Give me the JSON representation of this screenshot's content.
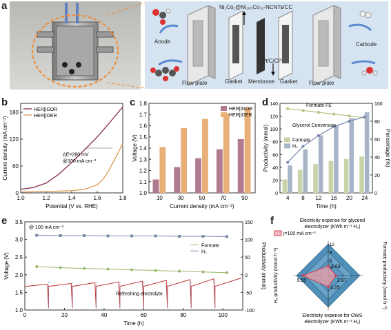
{
  "panel_labels": {
    "a": "a",
    "b": "b",
    "c": "c",
    "d": "d",
    "e": "e",
    "f": "f"
  },
  "panel_a": {
    "catalyst_label": "Ni₁Co₁@Ni₁₀₀Co₃₁-NCNTs/CC",
    "anode_label": "Anode",
    "cathode_label": "Cathode",
    "pt_label": "Pt/C/CP",
    "parts": [
      "Flow plate",
      "Gasket",
      "Membrane",
      "Gasket",
      "Flow plate"
    ]
  },
  "chart_data": [
    {
      "id": "b",
      "type": "line",
      "xlabel": "Potential (V vs. RHE)",
      "ylabel": "Current density (mA cm⁻²)",
      "xlim": [
        1.0,
        1.8
      ],
      "ylim": [
        0,
        200
      ],
      "xticks": [
        "1.0",
        "1.2",
        "1.4",
        "1.6",
        "1.8"
      ],
      "yticks": [
        "0",
        "60",
        "120",
        "180"
      ],
      "legend": [
        "HER||GOR",
        "HER||OER"
      ],
      "annotation": [
        "ΔE=280 mV",
        "@100 mA cm⁻²"
      ],
      "series": [
        {
          "name": "HER||GOR",
          "color": "#8b3a5a",
          "x": [
            1.0,
            1.1,
            1.2,
            1.3,
            1.4,
            1.5,
            1.6,
            1.7,
            1.8
          ],
          "y": [
            8,
            12,
            22,
            42,
            68,
            96,
            125,
            158,
            192
          ]
        },
        {
          "name": "HER||OER",
          "color": "#e0a060",
          "x": [
            1.0,
            1.2,
            1.4,
            1.5,
            1.6,
            1.65,
            1.7,
            1.75,
            1.8
          ],
          "y": [
            2,
            3,
            5,
            8,
            18,
            32,
            55,
            82,
            110
          ]
        }
      ]
    },
    {
      "id": "c",
      "type": "bar",
      "xlabel": "Current density (mA cm⁻²)",
      "ylabel": "Voltage (V)",
      "ylim": [
        1.0,
        1.8
      ],
      "yticks": [
        "1.0",
        "1.1",
        "1.2",
        "1.3",
        "1.4",
        "1.5",
        "1.6",
        "1.7",
        "1.8"
      ],
      "categories": [
        "10",
        "30",
        "50",
        "70",
        "90"
      ],
      "series": [
        {
          "name": "HER||GOR",
          "color": "#b07a90",
          "values": [
            1.12,
            1.23,
            1.31,
            1.39,
            1.48
          ]
        },
        {
          "name": "HER||OER",
          "color": "#e8b078",
          "values": [
            1.41,
            1.58,
            1.66,
            1.71,
            1.76
          ]
        }
      ]
    },
    {
      "id": "d",
      "type": "bar",
      "xlabel": "Time (h)",
      "ylabel": "Productivity (mmol)",
      "ylabel_right": "Percentage (%)",
      "ylim": [
        0,
        140
      ],
      "ylim_right": [
        0,
        100
      ],
      "yticks": [
        "0",
        "20",
        "40",
        "60",
        "80",
        "100",
        "120",
        "140"
      ],
      "yticks_right": [
        "0",
        "20",
        "40",
        "60",
        "80",
        "100"
      ],
      "categories": [
        "4",
        "8",
        "12",
        "16",
        "20",
        "24"
      ],
      "labels": {
        "fe": "Formate FE",
        "conversion": "Glycerol Conversion"
      },
      "series": [
        {
          "name": "Formate",
          "color": "#c8d4a8",
          "values": [
            21,
            36,
            45,
            50,
            53,
            57
          ]
        },
        {
          "name": "H₂",
          "color": "#a8b4c8",
          "values": [
            43,
            68,
            90,
            105,
            117,
            126
          ]
        }
      ],
      "lines": [
        {
          "name": "Formate FE",
          "color": "#b8c080",
          "values": [
            94,
            92,
            90,
            88,
            86,
            84
          ]
        },
        {
          "name": "Glycerol Conversion",
          "color": "#7888b0",
          "values": [
            34,
            52,
            64,
            74,
            80,
            85
          ]
        }
      ]
    },
    {
      "id": "e",
      "type": "line",
      "xlabel": "Time (h)",
      "ylabel": "Voltage (V)",
      "ylabel_right": "Productivity (mmol)",
      "xlim": [
        0,
        110
      ],
      "ylim": [
        1.0,
        3.5
      ],
      "ylim_right": [
        -100,
        150
      ],
      "xticks": [
        "0",
        "20",
        "40",
        "60",
        "80",
        "100"
      ],
      "yticks": [
        "1.0",
        "1.5",
        "2.0",
        "2.5",
        "3.0",
        "3.5"
      ],
      "yticks_right": [
        "-100",
        "-50",
        "0",
        "50",
        "100",
        "150"
      ],
      "labels": {
        "top": "@ 100 mA cm⁻²",
        "refresh": "Refreshing electrolyte"
      },
      "series": [
        {
          "name": "Formate",
          "color": "#9ab868",
          "x": [
            6,
            18,
            30,
            42,
            54,
            66,
            78,
            90,
            102
          ],
          "y": [
            23,
            20,
            18,
            16,
            14,
            12,
            10,
            8,
            6
          ]
        },
        {
          "name": "H₂",
          "color": "#7888a8",
          "x": [
            6,
            18,
            30,
            42,
            54,
            66,
            78,
            90,
            102
          ],
          "y": [
            112,
            111,
            111,
            110,
            110,
            110,
            109,
            109,
            108
          ]
        }
      ],
      "refresh_times": [
        12,
        24,
        36,
        48,
        60,
        72,
        84,
        96
      ],
      "voltage_start": 1.67,
      "voltage_end": 1.87
    },
    {
      "id": "f",
      "type": "radar",
      "title": [
        "Electricity expense for glycerol",
        "electrolyzer (KWh m⁻³ H₂)"
      ],
      "bottom_label": [
        "Electricity expense for OWS",
        "electrolyzer (KWh m⁻³ H₂)"
      ],
      "left_label": "H₂ productivity (mmol h⁻¹)",
      "right_label": "Formate productivity (mmol h⁻¹)",
      "legend": "j=100 mA cm⁻²",
      "axis_ticks": [
        "0",
        "3",
        "6",
        "9",
        "12"
      ],
      "values": [
        "3.63",
        "2.87",
        "4.25",
        "9.55"
      ]
    }
  ]
}
